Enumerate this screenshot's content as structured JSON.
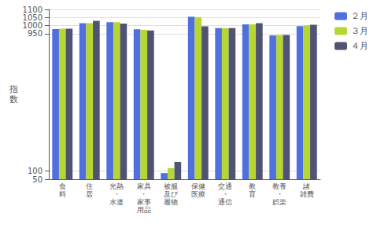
{
  "chart_data": {
    "type": "bar",
    "categories": [
      "食\n料",
      "住\n居",
      "光熱\n・\n水道",
      "家具\n・\n家事\n用品",
      "被服\n及び\n履物",
      "保健\n医療",
      "交通\n・\n通信",
      "教\n育",
      "教養\n・\n娯楽",
      "諸\n雑費"
    ],
    "series": [
      {
        "name": "２月",
        "values": [
          978,
          1015,
          1021,
          977,
          88,
          1055,
          985,
          1008,
          940,
          997
        ]
      },
      {
        "name": "３月",
        "values": [
          981,
          1015,
          1021,
          974,
          119,
          1053,
          985,
          1008,
          942,
          1002
        ]
      },
      {
        "name": "４月",
        "values": [
          981,
          1030,
          1013,
          970,
          157,
          996,
          985,
          1015,
          942,
          1005
        ]
      }
    ],
    "ylabel": "指\n数",
    "ylim": [
      50,
      1100
    ],
    "yticks": [
      50,
      100,
      950,
      1000,
      1050,
      1100
    ],
    "grid": true,
    "legend": "upper right"
  }
}
